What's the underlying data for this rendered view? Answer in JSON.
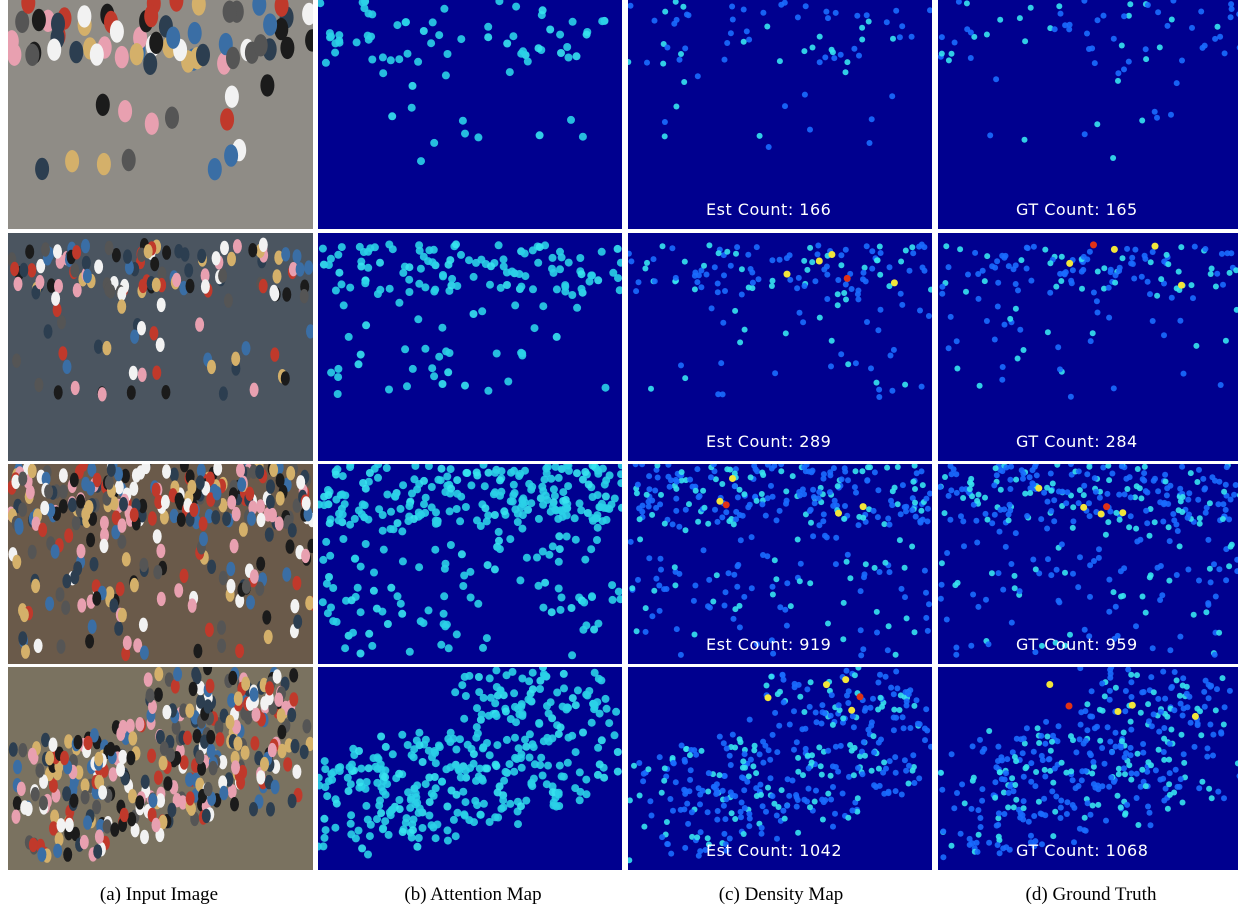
{
  "figure": {
    "columns": [
      {
        "key": "input",
        "caption": "(a) Input Image"
      },
      {
        "key": "attention",
        "caption": "(b) Attention Map"
      },
      {
        "key": "density",
        "caption": "(c) Density Map"
      },
      {
        "key": "gt",
        "caption": "(d) Ground Truth"
      }
    ],
    "rows": [
      {
        "est_label": "Est Count: 166",
        "gt_label": "GT Count: 165",
        "crowd": "sparse"
      },
      {
        "est_label": "Est Count: 289",
        "gt_label": "GT Count: 284",
        "crowd": "band"
      },
      {
        "est_label": "Est Count: 919",
        "gt_label": "GT Count: 959",
        "crowd": "dense-band"
      },
      {
        "est_label": "Est Count: 1042",
        "gt_label": "GT Count: 1068",
        "crowd": "diagonal"
      }
    ],
    "colors": {
      "map_background": "#00008f",
      "low": "#1a6bff",
      "mid": "#36e3f0",
      "high": "#f2e53a",
      "peak": "#e03216"
    }
  }
}
